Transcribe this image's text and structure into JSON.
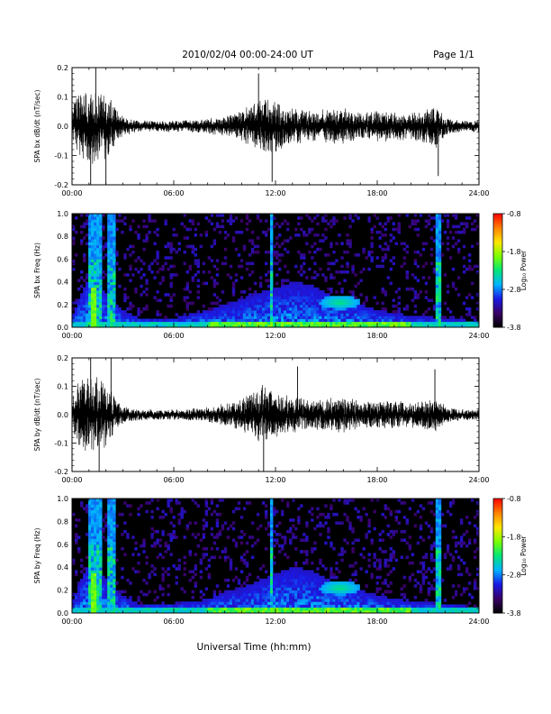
{
  "header": {
    "title": "2010/02/04  00:00-24:00 UT",
    "page": "Page 1/1"
  },
  "xlabel": "Universal Time (hh:mm)",
  "chart_data": [
    {
      "type": "line",
      "ylabel": "SPA bx dB/dt (nT/sec)",
      "ylim": [
        -0.2,
        0.2
      ],
      "yticks": [
        "-0.2",
        "-0.1",
        "0.0",
        "0.1",
        "0.2"
      ],
      "xticks": [
        "00:00",
        "06:00",
        "12:00",
        "18:00",
        "24:00"
      ],
      "xlim_hours": [
        0,
        24
      ],
      "envelope": {
        "hours": [
          0,
          0.5,
          1,
          1.5,
          2,
          2.5,
          3,
          4,
          5,
          6,
          7,
          8,
          9,
          10,
          10.5,
          11,
          11.5,
          12,
          12.5,
          13,
          14,
          15,
          16,
          17,
          18,
          19,
          20,
          21,
          21.5,
          22,
          23,
          24
        ],
        "amplitude": [
          0.1,
          0.2,
          0.2,
          0.2,
          0.18,
          0.12,
          0.05,
          0.03,
          0.03,
          0.03,
          0.035,
          0.04,
          0.05,
          0.08,
          0.11,
          0.14,
          0.16,
          0.15,
          0.12,
          0.1,
          0.08,
          0.09,
          0.1,
          0.07,
          0.08,
          0.08,
          0.07,
          0.1,
          0.12,
          0.05,
          0.03,
          0.03
        ]
      },
      "spikes": [
        {
          "hour": 1.1,
          "value": -0.2
        },
        {
          "hour": 1.4,
          "value": 0.2
        },
        {
          "hour": 2.0,
          "value": -0.2
        },
        {
          "hour": 11.0,
          "value": 0.18
        },
        {
          "hour": 11.8,
          "value": -0.19
        },
        {
          "hour": 21.6,
          "value": -0.17
        }
      ]
    },
    {
      "type": "heatmap",
      "ylabel": "SPA bx Freq (Hz)",
      "ylim": [
        0,
        1.0
      ],
      "yticks": [
        "0.0",
        "0.2",
        "0.4",
        "0.6",
        "0.8",
        "1.0"
      ],
      "xticks": [
        "00:00",
        "06:00",
        "12:00",
        "18:00",
        "24:00"
      ],
      "xlim_hours": [
        0,
        24
      ],
      "colorbar": {
        "label": "Log₁₀ Power",
        "range": [
          -3.8,
          -0.8
        ],
        "ticks": [
          "-0.8",
          "-1.8",
          "-2.8",
          "-3.8"
        ],
        "colormap": [
          "#000000",
          "#3a0066",
          "#1a1ae6",
          "#00b4ff",
          "#00e678",
          "#7dff00",
          "#ffe600",
          "#ff8000",
          "#ff0000"
        ]
      },
      "features": {
        "band_upper_freq_by_hour": {
          "hours": [
            0,
            1,
            2,
            3,
            4,
            6,
            8,
            9,
            10,
            11,
            12,
            13,
            14,
            15,
            16,
            17,
            18,
            20,
            22,
            24
          ],
          "freq": [
            0.1,
            0.45,
            0.3,
            0.15,
            0.08,
            0.08,
            0.15,
            0.2,
            0.25,
            0.3,
            0.35,
            0.4,
            0.38,
            0.3,
            0.25,
            0.2,
            0.15,
            0.1,
            0.08,
            0.05
          ]
        },
        "bright_spot": {
          "hour": 15.8,
          "freq": 0.22
        }
      }
    },
    {
      "type": "line",
      "ylabel": "SPA by dB/dt (nT/sec)",
      "ylim": [
        -0.2,
        0.2
      ],
      "yticks": [
        "-0.2",
        "-0.1",
        "0.0",
        "0.1",
        "0.2"
      ],
      "xticks": [
        "00:00",
        "06:00",
        "12:00",
        "18:00",
        "24:00"
      ],
      "xlim_hours": [
        0,
        24
      ],
      "envelope": {
        "hours": [
          0,
          0.5,
          1,
          1.5,
          2,
          2.5,
          3,
          4,
          5,
          6,
          7,
          8,
          9,
          10,
          10.5,
          11,
          11.5,
          12,
          12.5,
          13,
          14,
          15,
          16,
          17,
          18,
          19,
          20,
          21,
          21.5,
          22,
          23,
          24
        ],
        "amplitude": [
          0.1,
          0.2,
          0.2,
          0.2,
          0.18,
          0.1,
          0.05,
          0.03,
          0.03,
          0.03,
          0.035,
          0.04,
          0.06,
          0.09,
          0.12,
          0.16,
          0.15,
          0.13,
          0.11,
          0.1,
          0.08,
          0.09,
          0.1,
          0.07,
          0.08,
          0.08,
          0.07,
          0.09,
          0.1,
          0.05,
          0.03,
          0.03
        ]
      },
      "spikes": [
        {
          "hour": 1.1,
          "value": 0.2
        },
        {
          "hour": 1.6,
          "value": -0.2
        },
        {
          "hour": 2.3,
          "value": 0.2
        },
        {
          "hour": 11.3,
          "value": -0.2
        },
        {
          "hour": 13.3,
          "value": 0.17
        },
        {
          "hour": 21.4,
          "value": 0.16
        }
      ]
    },
    {
      "type": "heatmap",
      "ylabel": "SPA by Freq (Hz)",
      "ylim": [
        0,
        1.0
      ],
      "yticks": [
        "0.0",
        "0.2",
        "0.4",
        "0.6",
        "0.8",
        "1.0"
      ],
      "xticks": [
        "00:00",
        "06:00",
        "12:00",
        "18:00",
        "24:00"
      ],
      "xlim_hours": [
        0,
        24
      ],
      "colorbar": {
        "label": "Log₁₀ Power",
        "range": [
          -3.8,
          -0.8
        ],
        "ticks": [
          "-0.8",
          "-1.8",
          "-2.8",
          "-3.8"
        ],
        "colormap": [
          "#000000",
          "#3a0066",
          "#1a1ae6",
          "#00b4ff",
          "#00e678",
          "#7dff00",
          "#ffe600",
          "#ff8000",
          "#ff0000"
        ]
      },
      "features": {
        "band_upper_freq_by_hour": {
          "hours": [
            0,
            1,
            2,
            3,
            4,
            6,
            8,
            9,
            10,
            11,
            12,
            13,
            14,
            15,
            16,
            17,
            18,
            20,
            22,
            24
          ],
          "freq": [
            0.1,
            0.45,
            0.3,
            0.15,
            0.08,
            0.08,
            0.12,
            0.18,
            0.22,
            0.28,
            0.35,
            0.4,
            0.38,
            0.3,
            0.25,
            0.2,
            0.15,
            0.1,
            0.08,
            0.05
          ]
        },
        "bright_spot": {
          "hour": 15.8,
          "freq": 0.22
        }
      }
    }
  ]
}
